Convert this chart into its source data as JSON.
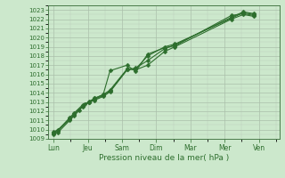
{
  "xlabel": "Pression niveau de la mer( hPa )",
  "ylim": [
    1009,
    1023.5
  ],
  "yticks": [
    1009,
    1010,
    1011,
    1012,
    1013,
    1014,
    1015,
    1016,
    1017,
    1018,
    1019,
    1020,
    1021,
    1022,
    1023
  ],
  "xtick_labels": [
    "Lun",
    "Jeu",
    "Sam",
    "Dim",
    "Mar",
    "Mer",
    "Ven"
  ],
  "xtick_positions": [
    0,
    1,
    2,
    3,
    4,
    5,
    6
  ],
  "background_color": "#cce8cc",
  "line_color": "#2d6e2d",
  "series": [
    [
      1009.8,
      1009.9,
      1011.1,
      1011.6,
      1012.1,
      1012.8,
      1013.0,
      1013.4,
      1013.8,
      1014.3,
      1016.6,
      1016.5,
      1017.0,
      1018.5,
      1019.0,
      1022.0,
      1022.5,
      1022.3
    ],
    [
      1009.5,
      1009.7,
      1011.0,
      1011.5,
      1012.5,
      1013.0,
      1013.2,
      1013.6,
      1014.1,
      1016.5,
      1016.7,
      1017.5,
      1018.8,
      1019.2,
      1022.2,
      1022.8,
      1022.6
    ],
    [
      1009.7,
      1010.0,
      1011.2,
      1011.7,
      1012.6,
      1013.1,
      1013.4,
      1013.8,
      1016.4,
      1017.0,
      1016.3,
      1018.2,
      1018.9,
      1019.1,
      1022.4,
      1022.6,
      1022.4
    ],
    [
      1009.6,
      1009.9,
      1011.3,
      1011.8,
      1012.7,
      1013.0,
      1013.3,
      1013.7,
      1014.2,
      1016.5,
      1016.6,
      1018.0,
      1019.0,
      1019.3,
      1022.1,
      1022.7,
      1022.5
    ]
  ],
  "x_series": [
    [
      0.0,
      0.13,
      0.47,
      0.6,
      0.75,
      0.9,
      1.05,
      1.2,
      1.45,
      1.65,
      2.15,
      2.4,
      2.75,
      3.25,
      3.55,
      5.2,
      5.55,
      5.85
    ],
    [
      0.0,
      0.13,
      0.47,
      0.6,
      0.85,
      1.05,
      1.2,
      1.45,
      1.65,
      2.15,
      2.4,
      2.75,
      3.25,
      3.55,
      5.2,
      5.55,
      5.85
    ],
    [
      0.0,
      0.13,
      0.47,
      0.6,
      0.85,
      1.05,
      1.2,
      1.45,
      1.65,
      2.15,
      2.4,
      2.75,
      3.25,
      3.55,
      5.2,
      5.55,
      5.85
    ],
    [
      0.0,
      0.13,
      0.47,
      0.6,
      0.85,
      1.05,
      1.2,
      1.45,
      1.65,
      2.15,
      2.4,
      2.75,
      3.25,
      3.55,
      5.2,
      5.55,
      5.85
    ]
  ],
  "xlim": [
    -0.15,
    6.6
  ],
  "marker_size": 2.5,
  "line_width": 0.8,
  "grid_major_color": "#aabfaa",
  "grid_minor_color": "#bbccbb"
}
